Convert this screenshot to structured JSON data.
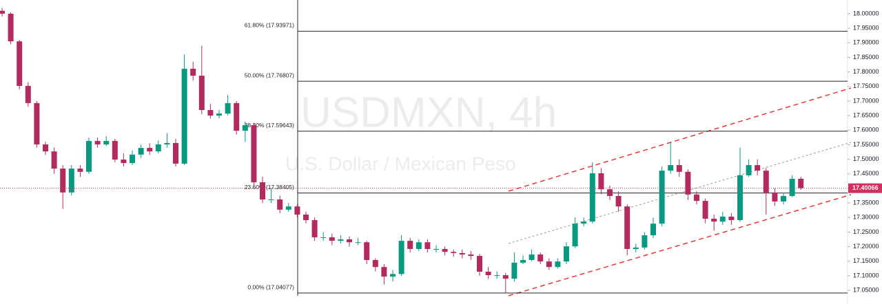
{
  "chart_data": {
    "type": "candlestick",
    "title": "USDMXN, 4h",
    "subtitle": "U.S. Dollar / Mexican Peso",
    "up_color": "#089981",
    "down_color": "#b22a5e",
    "ylim": [
      17.003,
      18.047
    ],
    "yticks": [
      {
        "value": 17.05,
        "label": "17.05000"
      },
      {
        "value": 17.1,
        "label": "17.10000"
      },
      {
        "value": 17.15,
        "label": "17.15000"
      },
      {
        "value": 17.2,
        "label": "17.20000"
      },
      {
        "value": 17.25,
        "label": "17.25000"
      },
      {
        "value": 17.3,
        "label": "17.30000"
      },
      {
        "value": 17.35,
        "label": "17.35000"
      },
      {
        "value": 17.4,
        "label": "17.40000"
      },
      {
        "value": 17.45,
        "label": "17.45000"
      },
      {
        "value": 17.5,
        "label": "17.50000"
      },
      {
        "value": 17.55,
        "label": "17.55000"
      },
      {
        "value": 17.6,
        "label": "17.60000"
      },
      {
        "value": 17.65,
        "label": "17.65000"
      },
      {
        "value": 17.7,
        "label": "17.70000"
      },
      {
        "value": 17.75,
        "label": "17.75000"
      },
      {
        "value": 17.8,
        "label": "17.80000"
      },
      {
        "value": 17.85,
        "label": "17.85000"
      },
      {
        "value": 17.9,
        "label": "17.90000"
      },
      {
        "value": 17.95,
        "label": "17.95000"
      },
      {
        "value": 18.0,
        "label": "18.00000"
      }
    ],
    "last_price": 17.40066,
    "last_price_color": "#d32f5e",
    "fib_levels": [
      {
        "label": "61.80% (17.93971)",
        "value": 17.93971
      },
      {
        "label": "50.00% (17.76807)",
        "value": 17.76807
      },
      {
        "label": "38.20% (17.59643)",
        "value": 17.59643
      },
      {
        "label": "23.60% (17.38405)",
        "value": 17.38405
      },
      {
        "label": "0.00% (17.04077)",
        "value": 17.04077
      }
    ],
    "candles": [
      [
        18.01,
        18.02,
        17.99,
        18.0
      ],
      [
        18.0,
        18.005,
        17.895,
        17.905
      ],
      [
        17.905,
        17.91,
        17.74,
        17.752
      ],
      [
        17.752,
        17.765,
        17.68,
        17.693
      ],
      [
        17.693,
        17.7,
        17.54,
        17.551
      ],
      [
        17.551,
        17.56,
        17.515,
        17.527
      ],
      [
        17.527,
        17.54,
        17.45,
        17.468
      ],
      [
        17.468,
        17.48,
        17.33,
        17.386
      ],
      [
        17.386,
        17.48,
        17.375,
        17.468
      ],
      [
        17.468,
        17.48,
        17.44,
        17.457
      ],
      [
        17.457,
        17.575,
        17.45,
        17.563
      ],
      [
        17.563,
        17.575,
        17.54,
        17.551
      ],
      [
        17.551,
        17.58,
        17.545,
        17.563
      ],
      [
        17.563,
        17.57,
        17.49,
        17.499
      ],
      [
        17.499,
        17.52,
        17.475,
        17.487
      ],
      [
        17.487,
        17.53,
        17.48,
        17.516
      ],
      [
        17.516,
        17.55,
        17.505,
        17.539
      ],
      [
        17.539,
        17.555,
        17.515,
        17.527
      ],
      [
        17.527,
        17.565,
        17.52,
        17.551
      ],
      [
        17.551,
        17.59,
        17.54,
        17.556
      ],
      [
        17.556,
        17.57,
        17.475,
        17.485
      ],
      [
        17.485,
        17.86,
        17.48,
        17.811
      ],
      [
        17.811,
        17.835,
        17.77,
        17.787
      ],
      [
        17.787,
        17.89,
        17.655,
        17.669
      ],
      [
        17.669,
        17.69,
        17.64,
        17.65
      ],
      [
        17.65,
        17.67,
        17.64,
        17.657
      ],
      [
        17.657,
        17.72,
        17.65,
        17.693
      ],
      [
        17.693,
        17.7,
        17.585,
        17.598
      ],
      [
        17.598,
        17.63,
        17.56,
        17.617
      ],
      [
        17.617,
        17.625,
        17.41,
        17.421
      ],
      [
        17.421,
        17.44,
        17.35,
        17.362
      ],
      [
        17.362,
        17.4,
        17.35,
        17.362
      ],
      [
        17.362,
        17.375,
        17.315,
        17.327
      ],
      [
        17.327,
        17.35,
        17.32,
        17.338
      ],
      [
        17.338,
        17.345,
        17.3,
        17.31
      ],
      [
        17.31,
        17.32,
        17.28,
        17.291
      ],
      [
        17.291,
        17.3,
        17.22,
        17.232
      ],
      [
        17.232,
        17.25,
        17.22,
        17.232
      ],
      [
        17.232,
        17.245,
        17.205,
        17.22
      ],
      [
        17.22,
        17.24,
        17.21,
        17.225
      ],
      [
        17.225,
        17.235,
        17.2,
        17.215
      ],
      [
        17.215,
        17.23,
        17.205,
        17.215
      ],
      [
        17.215,
        17.22,
        17.14,
        17.154
      ],
      [
        17.154,
        17.16,
        17.115,
        17.13
      ],
      [
        17.13,
        17.14,
        17.07,
        17.097
      ],
      [
        17.097,
        17.12,
        17.08,
        17.106
      ],
      [
        17.106,
        17.24,
        17.1,
        17.22
      ],
      [
        17.22,
        17.23,
        17.18,
        17.192
      ],
      [
        17.192,
        17.225,
        17.185,
        17.215
      ],
      [
        17.215,
        17.225,
        17.18,
        17.192
      ],
      [
        17.192,
        17.205,
        17.18,
        17.192
      ],
      [
        17.192,
        17.2,
        17.17,
        17.182
      ],
      [
        17.182,
        17.19,
        17.165,
        17.178
      ],
      [
        17.178,
        17.19,
        17.16,
        17.173
      ],
      [
        17.173,
        17.185,
        17.155,
        17.168
      ],
      [
        17.168,
        17.175,
        17.1,
        17.114
      ],
      [
        17.114,
        17.13,
        17.09,
        17.102
      ],
      [
        17.102,
        17.115,
        17.09,
        17.102
      ],
      [
        17.102,
        17.11,
        17.04,
        17.09
      ],
      [
        17.09,
        17.18,
        17.08,
        17.145
      ],
      [
        17.145,
        17.17,
        17.14,
        17.154
      ],
      [
        17.154,
        17.19,
        17.15,
        17.173
      ],
      [
        17.173,
        17.18,
        17.14,
        17.149
      ],
      [
        17.149,
        17.16,
        17.12,
        17.13
      ],
      [
        17.13,
        17.16,
        17.125,
        17.149
      ],
      [
        17.149,
        17.215,
        17.14,
        17.201
      ],
      [
        17.201,
        17.3,
        17.195,
        17.279
      ],
      [
        17.279,
        17.3,
        17.27,
        17.286
      ],
      [
        17.286,
        17.49,
        17.28,
        17.452
      ],
      [
        17.452,
        17.47,
        17.38,
        17.397
      ],
      [
        17.397,
        17.41,
        17.36,
        17.374
      ],
      [
        17.374,
        17.39,
        17.32,
        17.338
      ],
      [
        17.338,
        17.345,
        17.17,
        17.192
      ],
      [
        17.192,
        17.21,
        17.18,
        17.197
      ],
      [
        17.197,
        17.25,
        17.19,
        17.239
      ],
      [
        17.239,
        17.3,
        17.23,
        17.279
      ],
      [
        17.279,
        17.475,
        17.27,
        17.461
      ],
      [
        17.461,
        17.56,
        17.45,
        17.48
      ],
      [
        17.48,
        17.5,
        17.44,
        17.457
      ],
      [
        17.457,
        17.465,
        17.36,
        17.379
      ],
      [
        17.379,
        17.39,
        17.345,
        17.357
      ],
      [
        17.357,
        17.365,
        17.28,
        17.296
      ],
      [
        17.296,
        17.31,
        17.255,
        17.286
      ],
      [
        17.286,
        17.32,
        17.275,
        17.303
      ],
      [
        17.303,
        17.315,
        17.275,
        17.291
      ],
      [
        17.291,
        17.54,
        17.285,
        17.445
      ],
      [
        17.445,
        17.5,
        17.44,
        17.48
      ],
      [
        17.48,
        17.5,
        17.445,
        17.461
      ],
      [
        17.461,
        17.47,
        17.31,
        17.386
      ],
      [
        17.386,
        17.4,
        17.34,
        17.355
      ],
      [
        17.355,
        17.385,
        17.345,
        17.374
      ],
      [
        17.374,
        17.445,
        17.37,
        17.433
      ],
      [
        17.433,
        17.44,
        17.395,
        17.401
      ]
    ]
  }
}
